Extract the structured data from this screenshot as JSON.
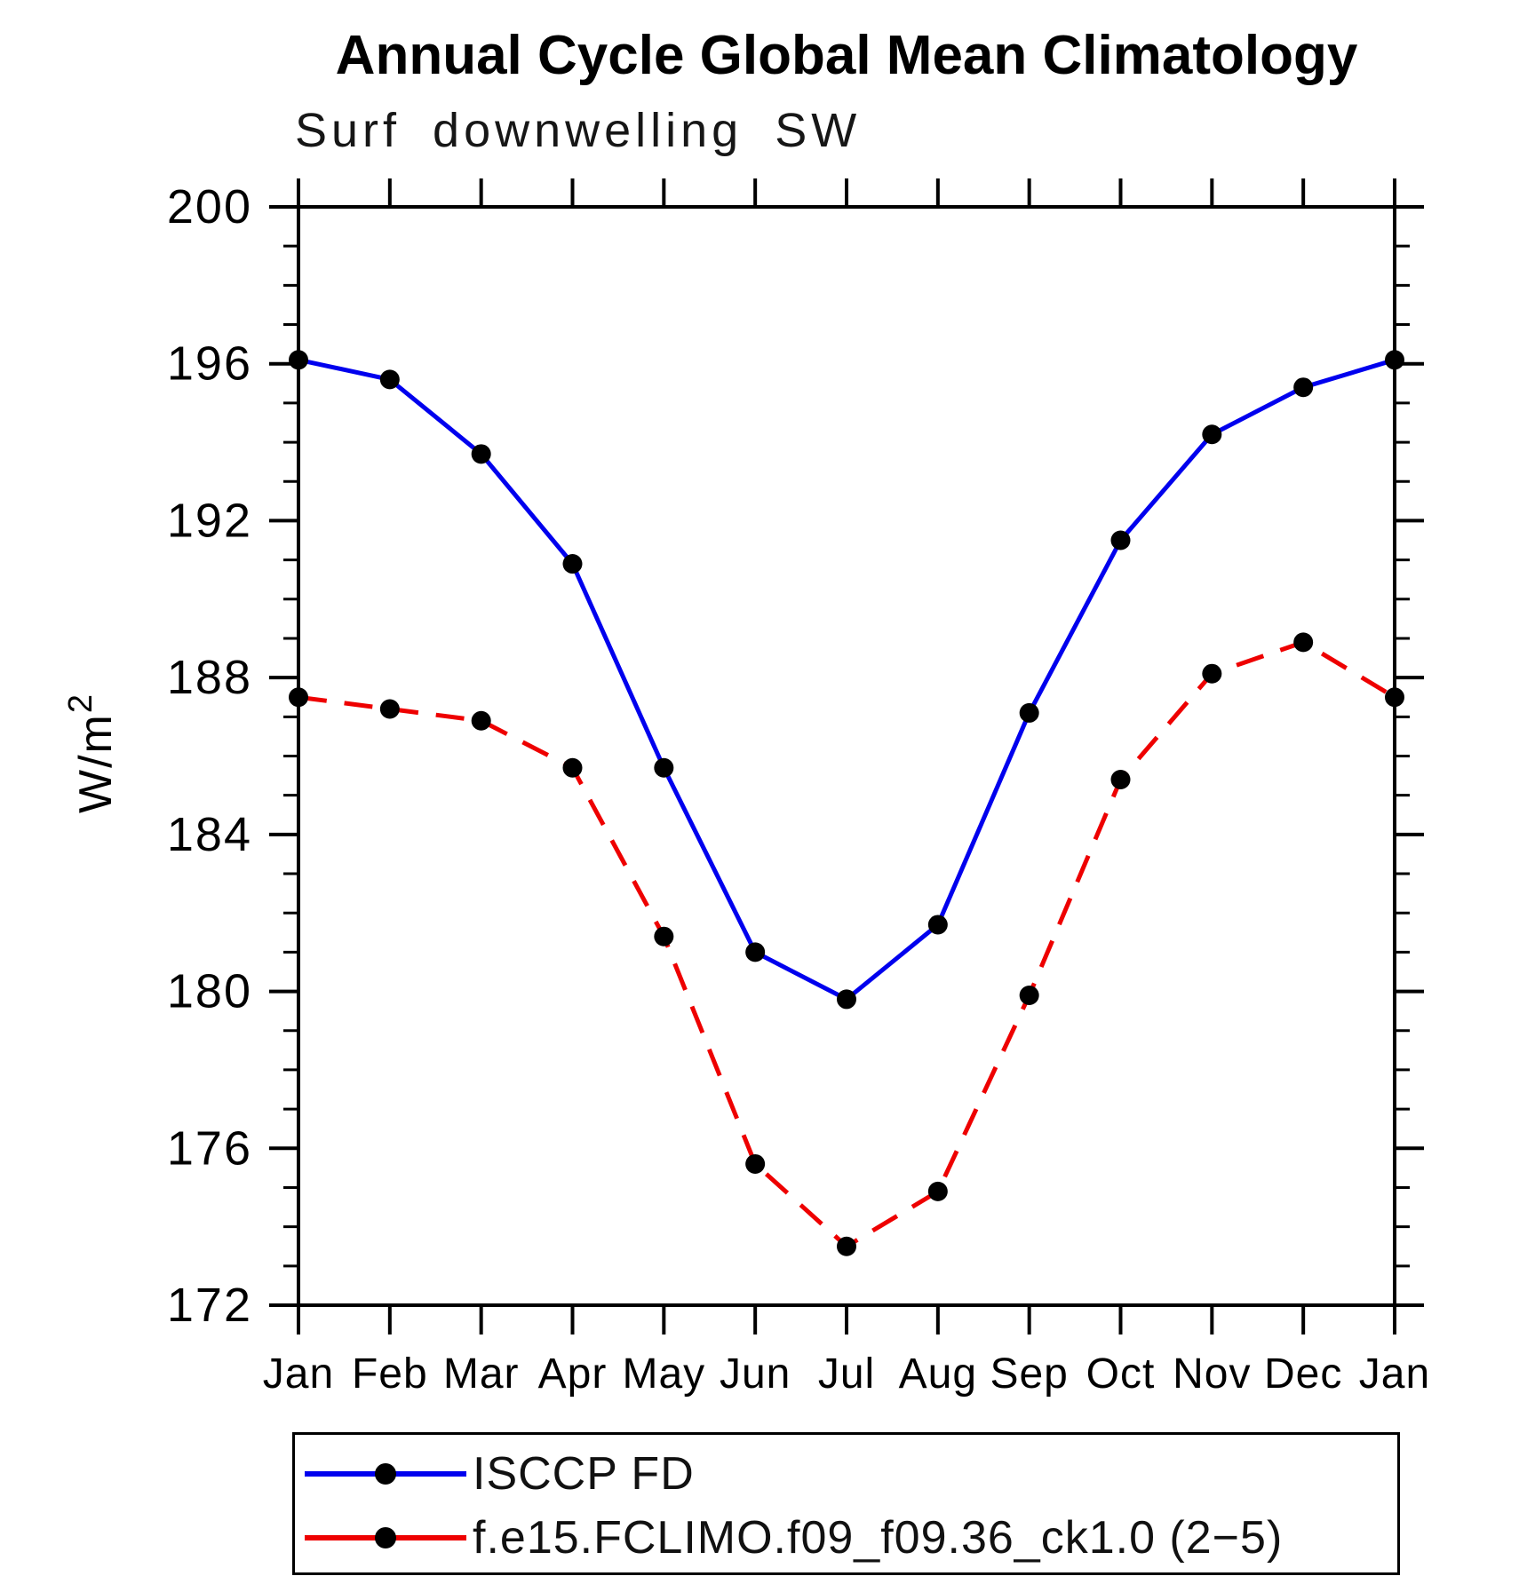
{
  "chart_data": {
    "type": "line",
    "title": "Annual Cycle Global Mean Climatology",
    "subtitle": "Surf downwelling SW",
    "xlabel": "",
    "ylabel": {
      "text": "W/m",
      "superscript": "2"
    },
    "categories": [
      "Jan",
      "Feb",
      "Mar",
      "Apr",
      "May",
      "Jun",
      "Jul",
      "Aug",
      "Sep",
      "Oct",
      "Nov",
      "Dec",
      "Jan"
    ],
    "ylim": [
      172,
      200
    ],
    "y_major_ticks": [
      200,
      196,
      192,
      188,
      184,
      180,
      176,
      172
    ],
    "y_minor_step": 1,
    "grid": false,
    "legend_position": "bottom",
    "series": [
      {
        "name": "ISCCP FD",
        "style": "solid",
        "color": "#0000ee",
        "marker": "circle",
        "marker_color": "#000000",
        "values": [
          196.1,
          195.6,
          193.7,
          190.9,
          185.7,
          181.0,
          179.8,
          181.7,
          187.1,
          191.5,
          194.2,
          195.4,
          196.1
        ]
      },
      {
        "name": "f.e15.FCLIMO.f09_f09.36_ck1.0 (2−5)",
        "style": "dashed",
        "color": "#ee0000",
        "marker": "circle",
        "marker_color": "#000000",
        "values": [
          187.5,
          187.2,
          186.9,
          185.7,
          181.4,
          175.6,
          173.5,
          174.9,
          179.9,
          185.4,
          188.1,
          188.9,
          187.5
        ]
      }
    ]
  },
  "colors": {
    "axis": "#000000",
    "text": "#000000",
    "background": "#ffffff"
  }
}
